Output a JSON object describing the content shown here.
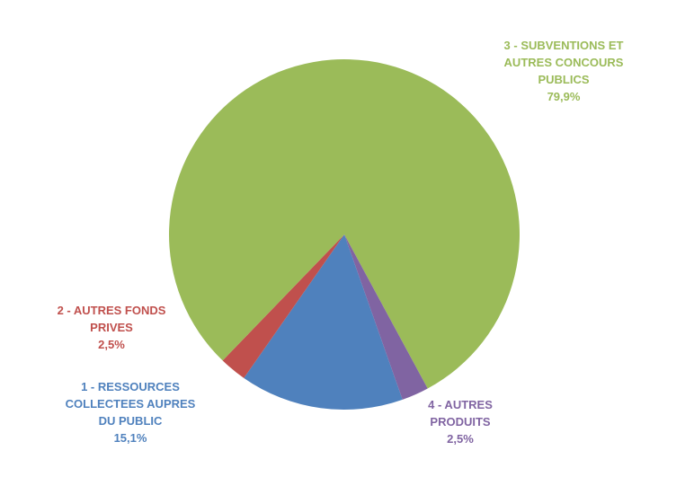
{
  "chart_data": {
    "type": "pie",
    "categories": [
      "1 - RESSOURCES COLLECTEES AUPRES DU PUBLIC",
      "2 - AUTRES FONDS PRIVES",
      "3 - SUBVENTIONS ET AUTRES CONCOURS PUBLICS",
      "4 - AUTRES PRODUITS"
    ],
    "values": [
      15.1,
      2.5,
      79.9,
      2.5
    ],
    "value_labels": [
      "15,1%",
      "2,5%",
      "79,9%",
      "2,5%"
    ],
    "colors": [
      "#4f81bd",
      "#c0504d",
      "#9bbb59",
      "#8064a2"
    ]
  }
}
